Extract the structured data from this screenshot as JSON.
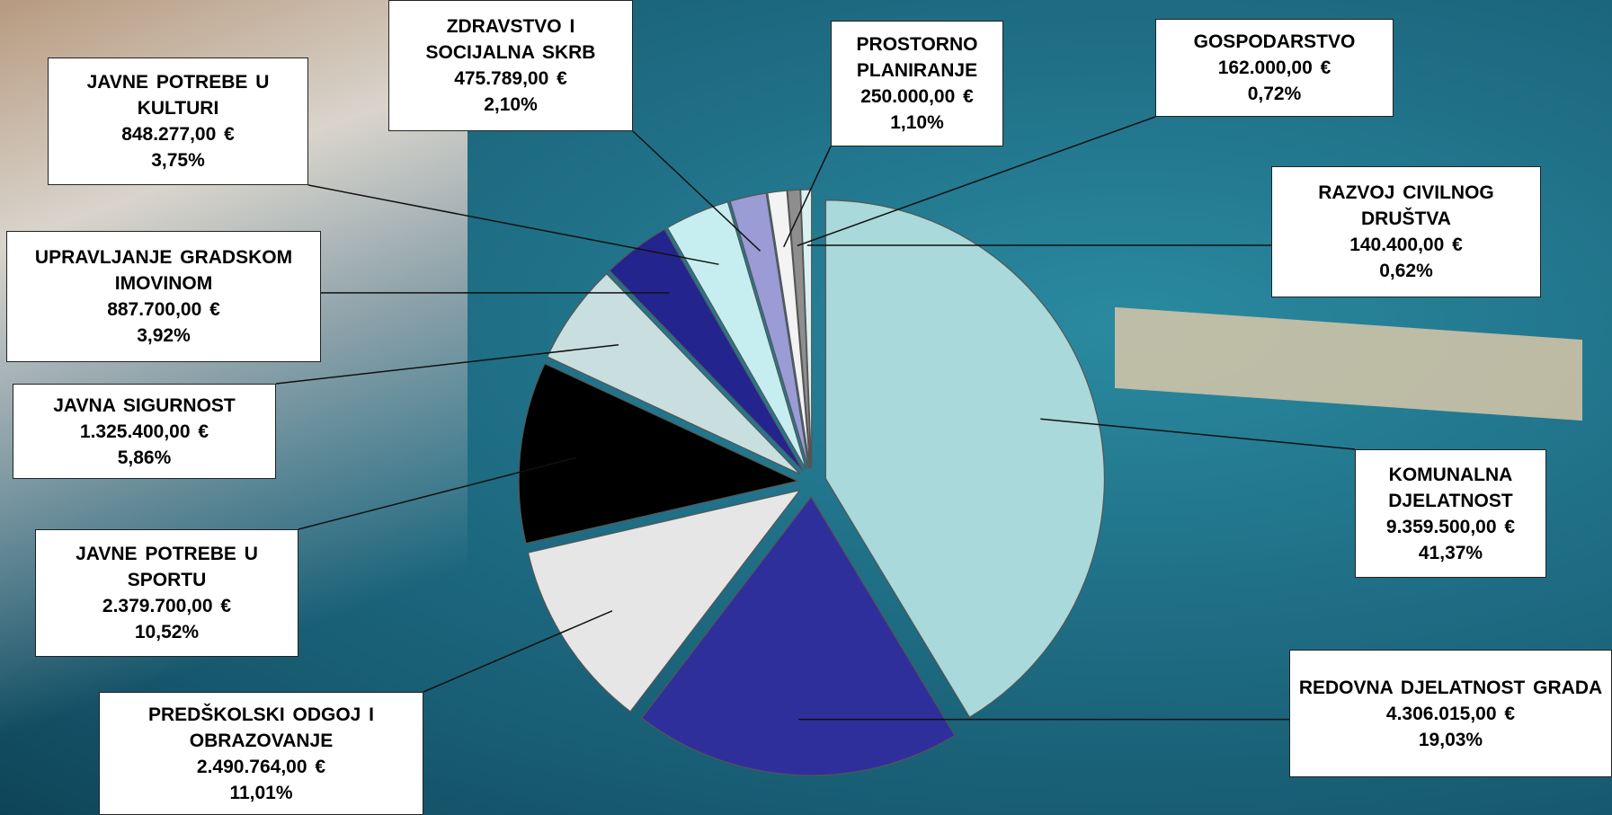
{
  "chart_data": {
    "type": "pie",
    "categories": [
      "KOMUNALNA DJELATNOST",
      "REDOVNA DJELATNOST GRADA",
      "PREDŠKOLSKI ODGOJ I OBRAZOVANJE",
      "JAVNE POTREBE U SPORTU",
      "JAVNA SIGURNOST",
      "UPRAVLJANJE GRADSKOM IMOVINOM",
      "JAVNE POTREBE U KULTURI",
      "ZDRAVSTVO I SOCIJALNA SKRB",
      "PROSTORNO PLANIRANJE",
      "GOSPODARSTVO",
      "RAZVOJ CIVILNOG DRUŠTVA"
    ],
    "values": [
      9359500,
      4306015,
      2490764,
      2379700,
      1325400,
      887700,
      848277,
      475789,
      250000,
      162000,
      140400
    ],
    "value_labels": [
      "9.359.500,00 €",
      "4.306.015,00 €",
      "2.490.764,00 €",
      "2.379.700,00 €",
      "1.325.400,00 €",
      "887.700,00 €",
      "848.277,00 €",
      "475.789,00 €",
      "250.000,00 €",
      "162.000,00 €",
      "140.400,00 €"
    ],
    "percentages": [
      41.37,
      19.03,
      11.01,
      10.52,
      5.86,
      3.92,
      3.75,
      2.1,
      1.1,
      0.72,
      0.62
    ],
    "percentage_labels": [
      "41,37%",
      "19,03%",
      "11,01%",
      "10,52%",
      "5,86%",
      "3,92%",
      "3,75%",
      "2,10%",
      "1,10%",
      "0,72%",
      "0,62%"
    ],
    "colors": [
      "#a9d9da",
      "#2f2f9c",
      "#e6e6e6",
      "#000000",
      "#c9dfdf",
      "#24248e",
      "#c6eef0",
      "#9b9bd6",
      "#f3f3f3",
      "#8e8e8e",
      "#d9f1f1"
    ]
  }
}
